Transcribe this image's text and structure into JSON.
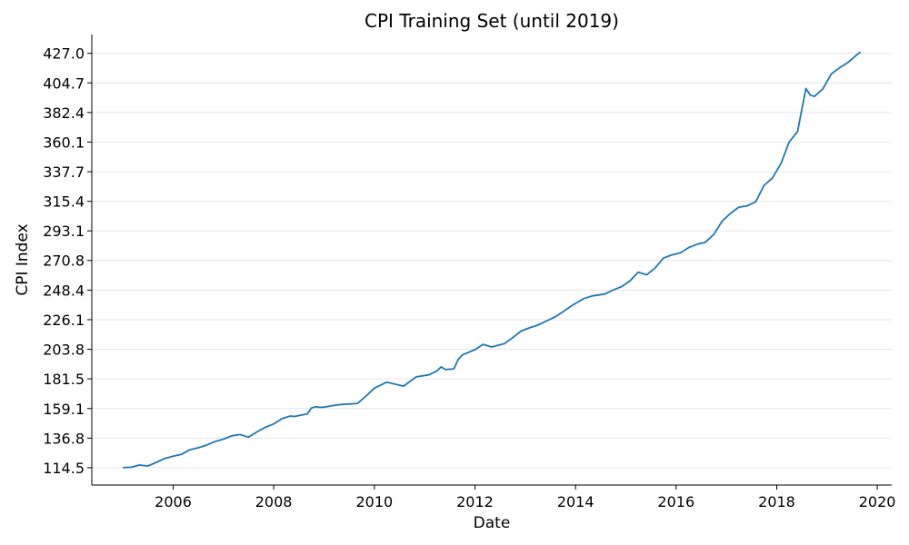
{
  "chart_data": {
    "type": "line",
    "title": "CPI Training Set (until 2019)",
    "xlabel": "Date",
    "ylabel": "CPI Index",
    "xlim": [
      "2004-05-20",
      "2020-04-15"
    ],
    "ylim": [
      101.4,
      441.2
    ],
    "x_ticks": [
      "2006",
      "2008",
      "2010",
      "2012",
      "2014",
      "2016",
      "2018",
      "2020"
    ],
    "y_ticks": [
      "114.5",
      "136.8",
      "159.1",
      "181.5",
      "203.8",
      "226.1",
      "248.4",
      "270.8",
      "293.1",
      "315.4",
      "337.7",
      "360.1",
      "382.4",
      "404.7",
      "427.0"
    ],
    "grid": "horizontal",
    "colors": {
      "line": "#1f77b4",
      "grid": "#e6e6e6",
      "axis": "#000000"
    },
    "series": [
      {
        "x": [
          "2005-01",
          "2005-03",
          "2005-05",
          "2005-07",
          "2005-09",
          "2005-11",
          "2006-01",
          "2006-03",
          "2006-05",
          "2006-07",
          "2006-09",
          "2006-11",
          "2007-01",
          "2007-03",
          "2007-05",
          "2007-07",
          "2007-09",
          "2007-11",
          "2008-01",
          "2008-03",
          "2008-05",
          "2008-06",
          "2008-07",
          "2008-09",
          "2008-10",
          "2008-11",
          "2008-12",
          "2009-01",
          "2009-03",
          "2009-05",
          "2009-07",
          "2009-09",
          "2009-11",
          "2010-01",
          "2010-04",
          "2010-08",
          "2010-11",
          "2011-02",
          "2011-04",
          "2011-05",
          "2011-06",
          "2011-08",
          "2011-09",
          "2011-10",
          "2012-01",
          "2012-03",
          "2012-05",
          "2012-08",
          "2012-10",
          "2012-12",
          "2013-02",
          "2013-04",
          "2013-06",
          "2013-08",
          "2013-10",
          "2013-12",
          "2014-03",
          "2014-05",
          "2014-08",
          "2014-10",
          "2014-12",
          "2015-02",
          "2015-04",
          "2015-06",
          "2015-08",
          "2015-10",
          "2015-12",
          "2016-02",
          "2016-04",
          "2016-06",
          "2016-08",
          "2016-10",
          "2016-12",
          "2017-02",
          "2017-04",
          "2017-06",
          "2017-08",
          "2017-10",
          "2017-12",
          "2018-02",
          "2018-04",
          "2018-06",
          "2018-08",
          "2018-09",
          "2018-10",
          "2018-12",
          "2019-02",
          "2019-04",
          "2019-06",
          "2019-08",
          "2019-09"
        ],
        "y": [
          114.5,
          114.8,
          116.5,
          115.8,
          118.5,
          121.5,
          123.2,
          124.5,
          128.0,
          129.5,
          131.5,
          134.2,
          136.0,
          138.5,
          139.5,
          137.5,
          141.5,
          145.0,
          147.5,
          151.5,
          153.5,
          153.1,
          153.8,
          155.0,
          159.5,
          160.5,
          160.0,
          160.2,
          161.3,
          162.2,
          162.5,
          163.0,
          168.5,
          174.5,
          179.0,
          176.0,
          183.0,
          184.5,
          187.5,
          190.5,
          188.5,
          189.0,
          196.0,
          199.5,
          203.5,
          207.5,
          205.5,
          208.0,
          212.5,
          217.5,
          220.0,
          222.0,
          225.0,
          228.0,
          232.0,
          236.5,
          242.0,
          244.0,
          245.5,
          248.5,
          251.0,
          255.5,
          262.0,
          260.0,
          265.0,
          272.5,
          275.0,
          276.5,
          280.5,
          283.0,
          284.5,
          290.5,
          300.5,
          306.5,
          311.0,
          312.0,
          315.0,
          327.5,
          333.0,
          344.0,
          360.0,
          368.0,
          400.5,
          395.5,
          394.5,
          400.0,
          411.5,
          416.0,
          420.0,
          425.5,
          428.0
        ]
      }
    ]
  }
}
